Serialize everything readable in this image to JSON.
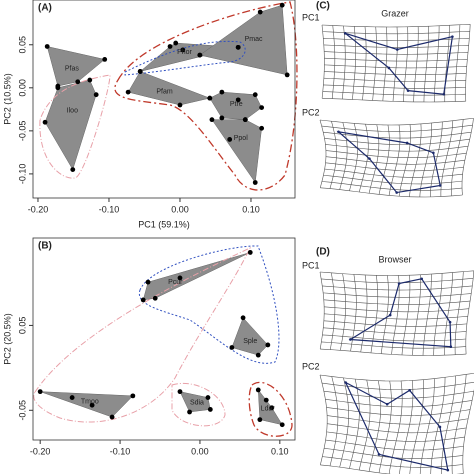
{
  "chart_data": [
    {
      "type": "scatter",
      "panel_label": "(A)",
      "x_label": "PC1 (59.1%)",
      "y_label": "PC2 (10.5%)",
      "xlim": [
        -0.207,
        0.162
      ],
      "ylim": [
        -0.128,
        0.102
      ],
      "xticks": [
        {
          "value": -0.2,
          "label": "-0.20"
        },
        {
          "value": -0.1,
          "label": "-0.10"
        },
        {
          "value": 0,
          "label": "0.00"
        },
        {
          "value": 0.1,
          "label": "0.10"
        }
      ],
      "yticks": [
        {
          "value": -0.1,
          "label": "-0.10"
        },
        {
          "value": -0.05,
          "label": "-0.05"
        },
        {
          "value": 0,
          "label": "0.00"
        },
        {
          "value": 0.05,
          "label": "0.05"
        }
      ],
      "hull_color": "#8c8c8c",
      "series": [
        {
          "name": "Pfas",
          "color": "#000000",
          "x": [
            -0.187,
            -0.106,
            -0.172,
            -0.144
          ],
          "values": [
            0.048,
            0.033,
            0.002,
            0.007
          ]
        },
        {
          "name": "Iloo",
          "color": "#000000",
          "x": [
            -0.172,
            -0.127,
            -0.118,
            -0.151,
            -0.19
          ],
          "values": [
            0.0,
            0.009,
            -0.008,
            -0.095,
            -0.04
          ]
        },
        {
          "name": "Phor",
          "color": "#000000",
          "x": [
            -0.056,
            -0.014,
            -0.006,
            0.004,
            0.028,
            0.082
          ],
          "values": [
            0.019,
            0.048,
            0.052,
            0.044,
            0.038,
            0.047
          ]
        },
        {
          "name": "Pmac",
          "color": "#000000",
          "x": [
            0.028,
            0.113,
            0.144,
            0.151,
            0.082
          ],
          "values": [
            0.038,
            0.088,
            0.096,
            0.015,
            0.047
          ]
        },
        {
          "name": "Pfam",
          "color": "#000000",
          "x": [
            -0.073,
            -0.056,
            0.042,
            0.0
          ],
          "values": [
            -0.005,
            0.019,
            -0.012,
            -0.02
          ]
        },
        {
          "name": "Ptre",
          "color": "#000000",
          "x": [
            0.042,
            0.059,
            0.082,
            0.106,
            0.115,
            0.092,
            0.059
          ],
          "values": [
            -0.012,
            -0.005,
            -0.014,
            -0.008,
            -0.023,
            -0.037,
            -0.035
          ]
        },
        {
          "name": "Ppol",
          "color": "#000000",
          "x": [
            0.045,
            0.07,
            0.115,
            0.106,
            0.092
          ],
          "values": [
            -0.037,
            -0.06,
            -0.047,
            -0.11,
            -0.037
          ]
        }
      ]
    },
    {
      "type": "scatter",
      "panel_label": "(B)",
      "y_label": "PC2 (20.5%)",
      "xlim": [
        -0.209,
        0.119
      ],
      "ylim": [
        -0.085,
        0.153
      ],
      "xticks": [
        {
          "value": -0.2,
          "label": "-0.20"
        },
        {
          "value": -0.1,
          "label": "-0.10"
        },
        {
          "value": 0,
          "label": "0.00"
        },
        {
          "value": 0.1,
          "label": "0.10"
        }
      ],
      "yticks": [
        {
          "value": -0.05,
          "label": "-0.05"
        },
        {
          "value": 0.05,
          "label": "0.05"
        }
      ],
      "hull_color": "#8c8c8c",
      "series": [
        {
          "name": "Pcur",
          "color": "#000000",
          "x": [
            -0.071,
            -0.065,
            -0.025,
            0.063,
            -0.056
          ],
          "values": [
            0.08,
            0.101,
            0.106,
            0.136,
            0.082
          ]
        },
        {
          "name": "Sple",
          "color": "#000000",
          "x": [
            0.054,
            0.04,
            0.073,
            0.085
          ],
          "values": [
            0.059,
            0.024,
            0.015,
            0.027
          ]
        },
        {
          "name": "Tmoo",
          "color": "#000000",
          "x": [
            -0.2,
            -0.16,
            -0.084,
            -0.11,
            -0.135
          ],
          "values": [
            -0.028,
            -0.035,
            -0.033,
            -0.058,
            -0.044
          ]
        },
        {
          "name": "Sdia",
          "color": "#000000",
          "x": [
            -0.025,
            -0.013,
            0.013,
            0.01
          ],
          "values": [
            -0.028,
            -0.052,
            -0.049,
            -0.035
          ]
        },
        {
          "name": "Ldar",
          "color": "#000000",
          "x": [
            0.073,
            0.075,
            0.09,
            0.103,
            0.083
          ],
          "values": [
            -0.026,
            -0.061,
            -0.047,
            -0.067,
            -0.038
          ]
        }
      ]
    }
  ],
  "side_panels": [
    {
      "label": "(C)",
      "title": "Grazer",
      "pc1": "PC1",
      "pc2": "PC2"
    },
    {
      "label": "(D)",
      "title": "Browser",
      "pc1": "PC1",
      "pc2": "PC2"
    }
  ]
}
